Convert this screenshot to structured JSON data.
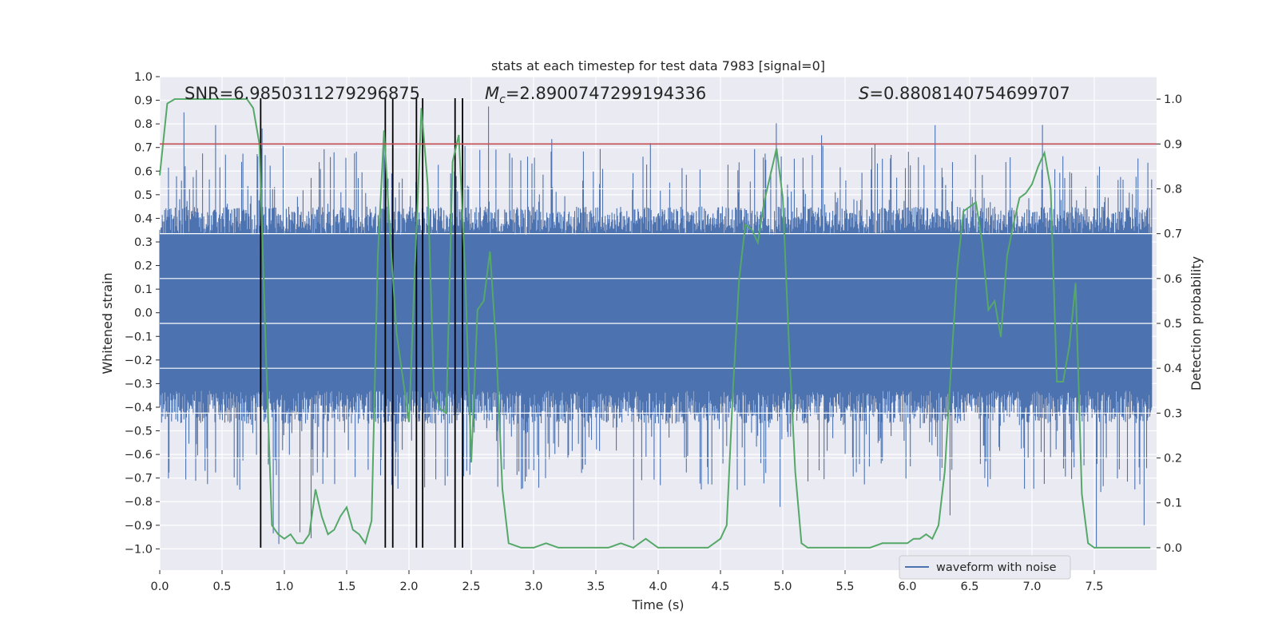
{
  "chart_data": {
    "type": "line",
    "title": "stats at each timestep for test data 7983 [signal=0]",
    "xlabel": "Time (s)",
    "ylabel_left": "Whitened strain",
    "ylabel_right": "Detection probability",
    "xlim": [
      0,
      8
    ],
    "ylim_left": [
      -1.09,
      1.0
    ],
    "ylim_right": [
      -0.05,
      1.05
    ],
    "x_ticks": [
      "0.0",
      "0.5",
      "1.0",
      "1.5",
      "2.0",
      "2.5",
      "3.0",
      "3.5",
      "4.0",
      "4.5",
      "5.0",
      "5.5",
      "6.0",
      "6.5",
      "7.0",
      "7.5"
    ],
    "y_left_ticks": [
      "1.0",
      "0.9",
      "0.8",
      "0.7",
      "0.6",
      "0.5",
      "0.4",
      "0.3",
      "0.2",
      "0.1",
      "0.0",
      "−0.1",
      "−0.2",
      "−0.3",
      "−0.4",
      "−0.5",
      "−0.6",
      "−0.7",
      "−0.8",
      "−0.9",
      "−1.0"
    ],
    "y_right_ticks": [
      "1.0",
      "0.9",
      "0.8",
      "0.7",
      "0.6",
      "0.5",
      "0.4",
      "0.3",
      "0.2",
      "0.1",
      "0.0"
    ],
    "annotations": {
      "snr": "SNR=6.9850311279296875",
      "mc_symbol": "M",
      "mc_sub": "c",
      "mc_value": "=2.8900747299194336",
      "s_symbol": "S",
      "s_value": "=0.8808140754699707"
    },
    "legend": {
      "label": "waveform with noise",
      "placement": "lower-right"
    },
    "threshold": {
      "value": 0.9,
      "axis": "right",
      "color": "#c44e52"
    },
    "vertical_markers": [
      0.81,
      1.81,
      1.87,
      2.06,
      2.11,
      2.37,
      2.43
    ],
    "waveform": {
      "name": "waveform with noise",
      "color": "#4c72b0",
      "sample_count": 1600,
      "typical_envelope": 0.33,
      "max_peak": 0.9,
      "min_trough": -1.0
    },
    "probability_series": {
      "name": "detection probability",
      "color": "#55a868",
      "x": [
        0.0,
        0.06,
        0.12,
        0.2,
        0.3,
        0.4,
        0.5,
        0.6,
        0.7,
        0.75,
        0.8,
        0.85,
        0.9,
        0.95,
        1.0,
        1.05,
        1.1,
        1.15,
        1.2,
        1.25,
        1.3,
        1.35,
        1.4,
        1.45,
        1.5,
        1.55,
        1.6,
        1.65,
        1.7,
        1.75,
        1.8,
        1.85,
        1.9,
        1.95,
        2.0,
        2.05,
        2.1,
        2.15,
        2.2,
        2.25,
        2.3,
        2.35,
        2.4,
        2.45,
        2.5,
        2.55,
        2.6,
        2.65,
        2.7,
        2.75,
        2.8,
        2.9,
        3.0,
        3.1,
        3.2,
        3.3,
        3.4,
        3.5,
        3.6,
        3.7,
        3.8,
        3.9,
        4.0,
        4.1,
        4.2,
        4.3,
        4.4,
        4.45,
        4.5,
        4.55,
        4.6,
        4.65,
        4.7,
        4.75,
        4.8,
        4.85,
        4.9,
        4.95,
        5.0,
        5.05,
        5.1,
        5.15,
        5.2,
        5.3,
        5.4,
        5.5,
        5.6,
        5.7,
        5.8,
        5.9,
        6.0,
        6.05,
        6.1,
        6.15,
        6.2,
        6.25,
        6.3,
        6.35,
        6.4,
        6.45,
        6.5,
        6.55,
        6.6,
        6.65,
        6.7,
        6.75,
        6.8,
        6.85,
        6.9,
        6.95,
        7.0,
        7.05,
        7.1,
        7.15,
        7.2,
        7.25,
        7.3,
        7.35,
        7.4,
        7.45,
        7.5,
        7.55,
        7.6,
        7.7,
        7.8,
        7.9,
        7.95
      ],
      "y": [
        0.83,
        0.99,
        1.0,
        1.0,
        1.0,
        1.0,
        1.0,
        1.0,
        1.0,
        0.98,
        0.9,
        0.45,
        0.05,
        0.03,
        0.02,
        0.03,
        0.01,
        0.01,
        0.03,
        0.13,
        0.07,
        0.03,
        0.04,
        0.07,
        0.09,
        0.04,
        0.03,
        0.01,
        0.06,
        0.65,
        0.93,
        0.69,
        0.48,
        0.38,
        0.28,
        0.64,
        0.98,
        0.81,
        0.35,
        0.31,
        0.3,
        0.86,
        0.92,
        0.62,
        0.19,
        0.53,
        0.55,
        0.66,
        0.45,
        0.13,
        0.01,
        0.0,
        0.0,
        0.01,
        0.0,
        0.0,
        0.0,
        0.0,
        0.0,
        0.01,
        0.0,
        0.02,
        0.0,
        0.0,
        0.0,
        0.0,
        0.0,
        0.01,
        0.02,
        0.05,
        0.35,
        0.6,
        0.72,
        0.71,
        0.68,
        0.77,
        0.83,
        0.89,
        0.78,
        0.45,
        0.17,
        0.01,
        0.0,
        0.0,
        0.0,
        0.0,
        0.0,
        0.0,
        0.01,
        0.01,
        0.01,
        0.02,
        0.02,
        0.03,
        0.02,
        0.05,
        0.17,
        0.4,
        0.62,
        0.75,
        0.76,
        0.77,
        0.68,
        0.53,
        0.55,
        0.47,
        0.65,
        0.72,
        0.78,
        0.79,
        0.81,
        0.85,
        0.88,
        0.8,
        0.37,
        0.37,
        0.45,
        0.59,
        0.12,
        0.01,
        0.0,
        0.0,
        0.0,
        0.0,
        0.0,
        0.0,
        0.0
      ]
    }
  }
}
